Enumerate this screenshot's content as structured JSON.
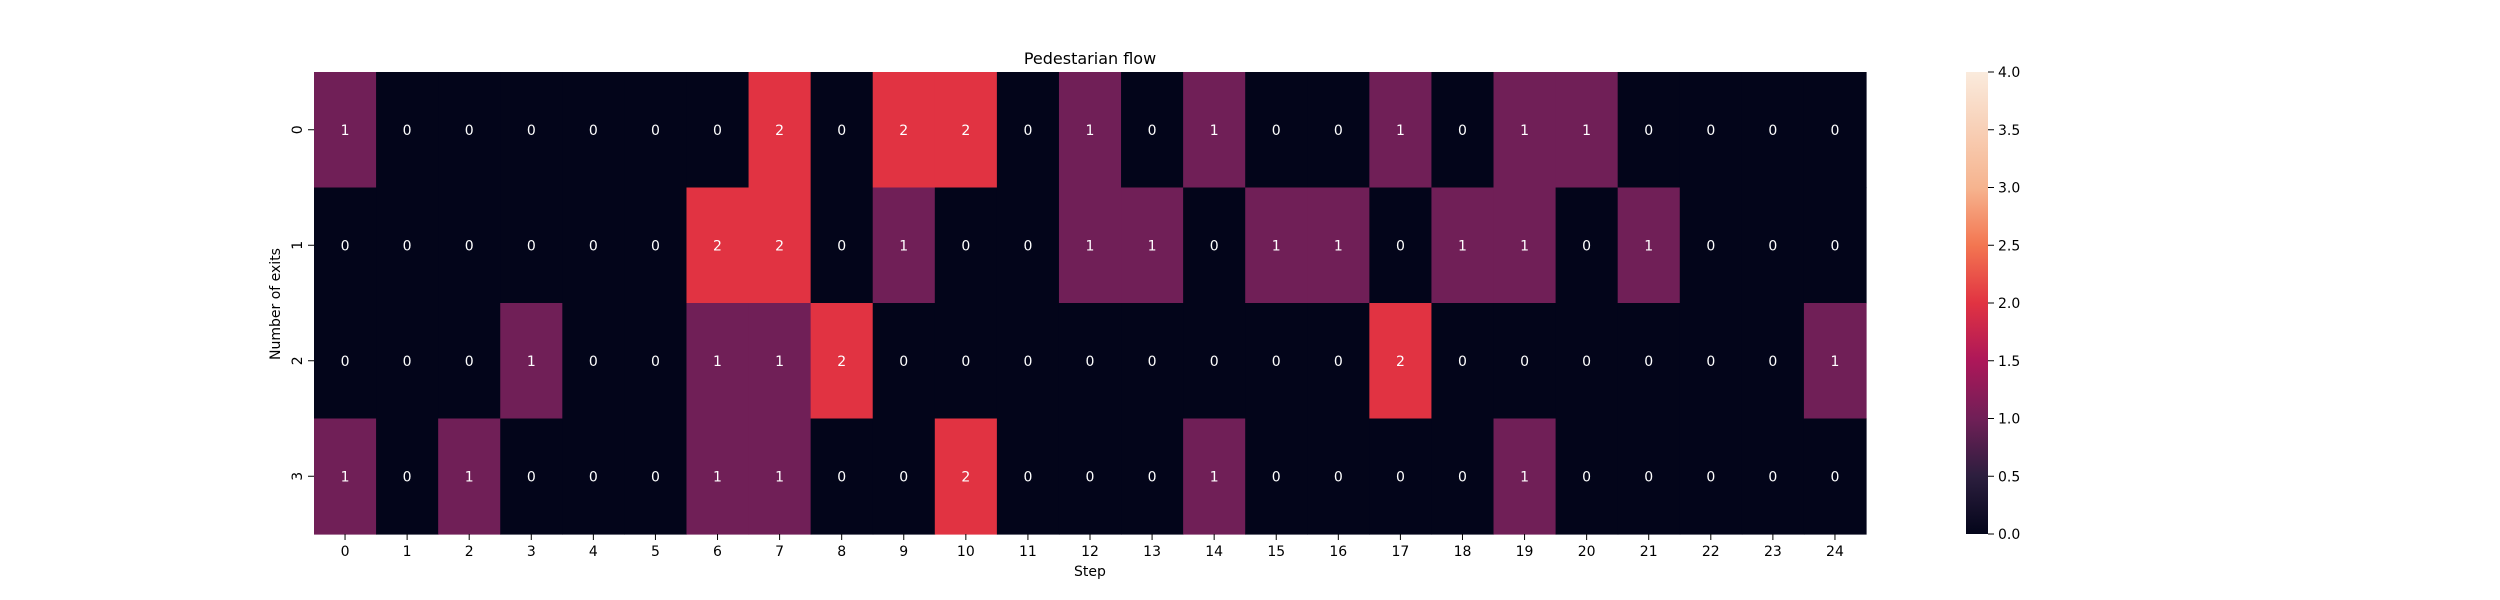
{
  "chart_data": {
    "type": "heatmap",
    "title": "Pedestarian flow",
    "xlabel": "Step",
    "ylabel": "Number of exits",
    "x_categories": [
      "0",
      "1",
      "2",
      "3",
      "4",
      "5",
      "6",
      "7",
      "8",
      "9",
      "10",
      "11",
      "12",
      "13",
      "14",
      "15",
      "16",
      "17",
      "18",
      "19",
      "20",
      "21",
      "22",
      "23",
      "24"
    ],
    "y_categories": [
      "0",
      "1",
      "2",
      "3"
    ],
    "values": [
      [
        1,
        0,
        0,
        0,
        0,
        0,
        0,
        2,
        0,
        2,
        2,
        0,
        1,
        0,
        1,
        0,
        0,
        1,
        0,
        1,
        1,
        0,
        0,
        0,
        0
      ],
      [
        0,
        0,
        0,
        0,
        0,
        0,
        2,
        2,
        0,
        1,
        0,
        0,
        1,
        1,
        0,
        1,
        1,
        0,
        1,
        1,
        0,
        1,
        0,
        0,
        0
      ],
      [
        0,
        0,
        0,
        1,
        0,
        0,
        1,
        1,
        2,
        0,
        0,
        0,
        0,
        0,
        0,
        0,
        0,
        2,
        0,
        0,
        0,
        0,
        0,
        0,
        1
      ],
      [
        1,
        0,
        1,
        0,
        0,
        0,
        1,
        1,
        0,
        0,
        2,
        0,
        0,
        0,
        1,
        0,
        0,
        0,
        0,
        1,
        0,
        0,
        0,
        0,
        0
      ]
    ],
    "vmin": 0,
    "vmax": 4,
    "annotated": true,
    "colormap": "rocket",
    "colorbar_ticks": [
      "0.0",
      "0.5",
      "1.0",
      "1.5",
      "2.0",
      "2.5",
      "3.0",
      "3.5",
      "4.0"
    ],
    "colors": {
      "0": "#03051a",
      "1": "#701f57",
      "2": "#e13342"
    }
  }
}
